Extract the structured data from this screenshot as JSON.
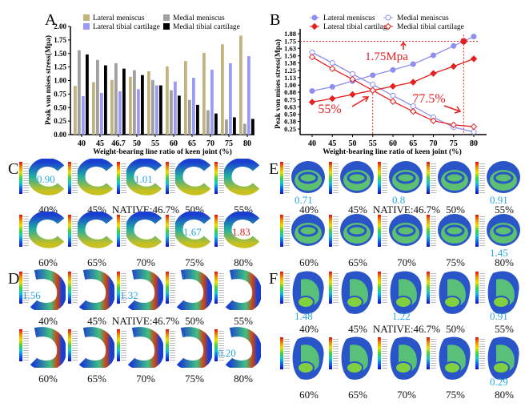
{
  "chart_data": [
    {
      "panel": "A",
      "type": "bar",
      "ylabel": "Peak von mises stress(Mpa)",
      "xlabel": "Weight-bearing line ratio of keen joint  (%)",
      "categories": [
        "40",
        "45",
        "46.7",
        "50",
        "55",
        "60",
        "65",
        "70",
        "75",
        "80"
      ],
      "ylim": [
        0,
        2.0
      ],
      "yticks": [
        "0.00",
        "0.25",
        "0.50",
        "0.75",
        "1.00",
        "1.25",
        "1.50",
        "1.75",
        "2.00"
      ],
      "legend": "top",
      "series": [
        {
          "name": "Lateral meniscus",
          "color": "#c2b47e",
          "values": [
            0.9,
            0.97,
            1.01,
            1.07,
            1.17,
            1.26,
            1.36,
            1.51,
            1.67,
            1.83
          ]
        },
        {
          "name": "Medial meniscus",
          "color": "#a0a0a0",
          "values": [
            1.56,
            1.38,
            1.32,
            1.19,
            1.01,
            0.82,
            0.64,
            0.45,
            0.28,
            0.2
          ]
        },
        {
          "name": "Lateral tibial cartilage",
          "color": "#9b9bf5",
          "values": [
            0.71,
            0.77,
            0.8,
            0.84,
            0.91,
            0.98,
            1.05,
            1.2,
            1.32,
            1.45
          ]
        },
        {
          "name": "Medial tibial cartilage",
          "color": "#000000",
          "values": [
            1.48,
            1.28,
            1.22,
            1.1,
            0.91,
            0.72,
            0.55,
            0.39,
            0.32,
            0.29
          ]
        }
      ]
    },
    {
      "panel": "B",
      "type": "line",
      "ylabel": "Peak von mises stress(Mpa)",
      "xlabel": "Weight-bearing line ratio of keen joint  (%)",
      "x": [
        40,
        45,
        50,
        55,
        60,
        65,
        70,
        75,
        80
      ],
      "xlim": [
        35,
        82
      ],
      "ylim": [
        0.15,
        1.88
      ],
      "yticks": [
        "0.25",
        "0.38",
        "0.50",
        "0.63",
        "0.75",
        "0.88",
        "1.00",
        "1.13",
        "1.25",
        "1.38",
        "1.50",
        "1.63",
        "1.75",
        "1.88"
      ],
      "legend": "top",
      "series": [
        {
          "name": "Lateral meniscus",
          "color": "#8f8ff0",
          "marker": "filled-circle",
          "values": [
            0.9,
            0.97,
            1.07,
            1.17,
            1.26,
            1.36,
            1.51,
            1.67,
            1.83
          ]
        },
        {
          "name": "Medial meniscus",
          "color": "#8f8ff0",
          "marker": "open-circle",
          "values": [
            1.56,
            1.38,
            1.19,
            1.01,
            0.82,
            0.64,
            0.45,
            0.28,
            0.2
          ]
        },
        {
          "name": "Lateral tibial cartilage",
          "color": "#e52020",
          "marker": "filled-diamond",
          "values": [
            0.71,
            0.77,
            0.84,
            0.91,
            0.98,
            1.05,
            1.2,
            1.32,
            1.45
          ]
        },
        {
          "name": "Medial tibial cartilage",
          "color": "#e52020",
          "marker": "open-diamond",
          "values": [
            1.48,
            1.28,
            1.1,
            0.91,
            0.72,
            0.55,
            0.39,
            0.32,
            0.29
          ]
        }
      ],
      "annotations": {
        "color": "#e52020",
        "stress_label": "1.75Mpa",
        "stress_value": 1.75,
        "cross1_label": "55%",
        "cross1_x": 55,
        "cross1_y": 0.91,
        "cross2_label": "77.5%",
        "cross2_x": 77.5
      }
    }
  ],
  "panels": [
    {
      "letter": "C",
      "shape": "lateral-meniscus",
      "rows": [
        [
          "40%",
          "45%",
          "NATIVE:46.7%",
          "50%",
          "55%"
        ],
        [
          "60%",
          "65%",
          "70%",
          "75%",
          "80%"
        ]
      ],
      "annotations": [
        {
          "row": 0,
          "col": 0,
          "value": "0.90",
          "color": "#2aa7e1"
        },
        {
          "row": 0,
          "col": 2,
          "value": "1.01",
          "color": "#2aa7e1"
        },
        {
          "row": 1,
          "col": 3,
          "value": "1.67",
          "color": "#2aa7e1"
        },
        {
          "row": 1,
          "col": 4,
          "value": "1.83",
          "color": "#e52020"
        }
      ]
    },
    {
      "letter": "D",
      "shape": "medial-meniscus",
      "rows": [
        [
          "40%",
          "45%",
          "NATIVE:46.7%",
          "50%",
          "55%"
        ],
        [
          "60%",
          "65%",
          "70%",
          "75%",
          "80%"
        ]
      ],
      "annotations": [
        {
          "row": 0,
          "col": 0,
          "value": "1.56",
          "color": "#2aa7e1"
        },
        {
          "row": 0,
          "col": 2,
          "value": "1.32",
          "color": "#2aa7e1"
        },
        {
          "row": 1,
          "col": 4,
          "value": "0.20",
          "color": "#2aa7e1"
        }
      ]
    },
    {
      "letter": "E",
      "shape": "lateral-tibial-cartilage",
      "rows": [
        [
          "40%",
          "45%",
          "NATIVE:46.7%",
          "50%",
          "55%"
        ],
        [
          "60%",
          "65%",
          "70%",
          "75%",
          "80%"
        ]
      ],
      "annotations": [
        {
          "row": 0,
          "col": 0,
          "value": "0.71",
          "color": "#2aa7e1"
        },
        {
          "row": 0,
          "col": 2,
          "value": "0.8",
          "color": "#2aa7e1"
        },
        {
          "row": 0,
          "col": 4,
          "value": "0.91",
          "color": "#2aa7e1"
        },
        {
          "row": 1,
          "col": 4,
          "value": "1.45",
          "color": "#2aa7e1"
        }
      ]
    },
    {
      "letter": "F",
      "shape": "medial-tibial-cartilage",
      "rows": [
        [
          "40%",
          "45%",
          "NATIVE:46.7%",
          "50%",
          "55%"
        ],
        [
          "60%",
          "65%",
          "70%",
          "75%",
          "80%"
        ]
      ],
      "annotations": [
        {
          "row": 0,
          "col": 0,
          "value": "1.48",
          "color": "#2aa7e1"
        },
        {
          "row": 0,
          "col": 2,
          "value": "1.22",
          "color": "#2aa7e1"
        },
        {
          "row": 0,
          "col": 4,
          "value": "0.91",
          "color": "#2aa7e1"
        },
        {
          "row": 1,
          "col": 4,
          "value": "0.29",
          "color": "#2aa7e1"
        }
      ]
    }
  ]
}
